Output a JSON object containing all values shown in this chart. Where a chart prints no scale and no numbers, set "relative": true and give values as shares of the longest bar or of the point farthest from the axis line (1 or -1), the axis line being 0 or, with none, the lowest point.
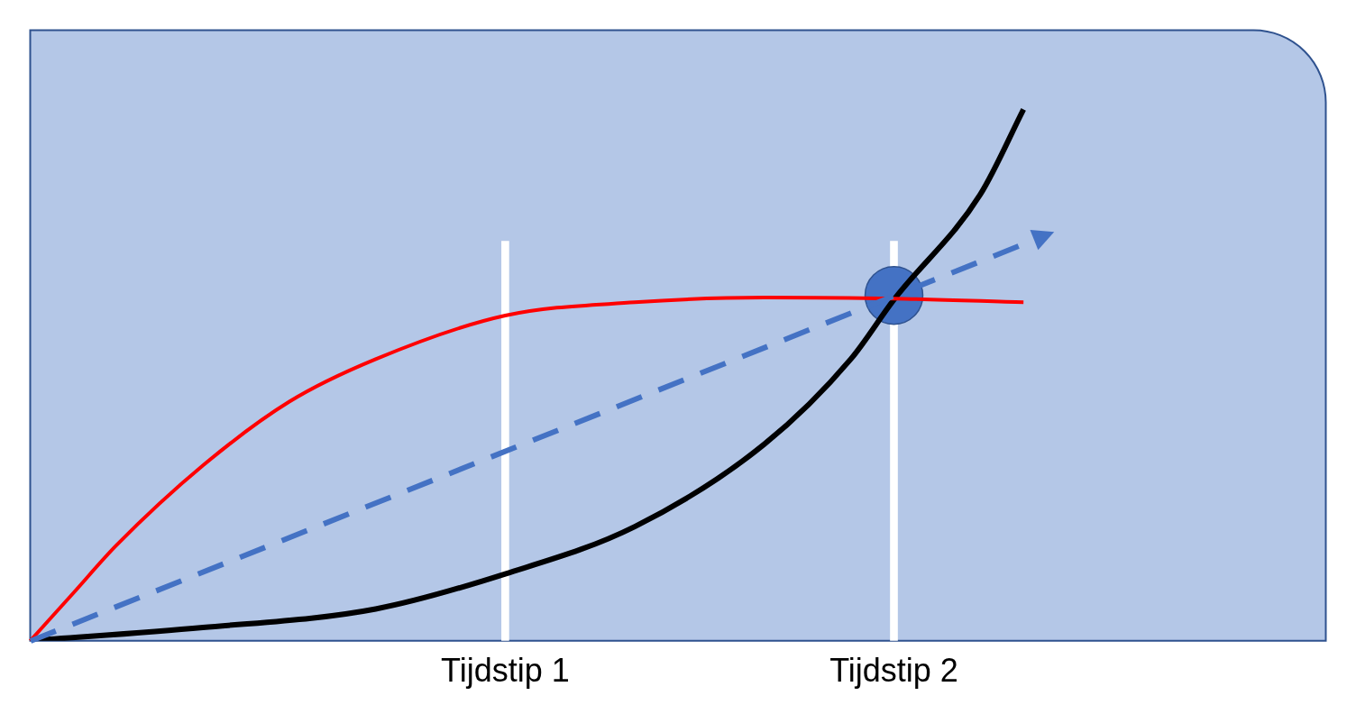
{
  "chart_data": {
    "type": "line",
    "relative": true,
    "legend": false,
    "marker": "none",
    "categories": [
      null,
      null,
      null,
      null,
      null,
      null,
      null,
      null,
      null,
      null,
      null,
      "Tijdstip 1",
      null,
      null,
      null,
      null,
      null,
      null,
      null,
      null,
      "Tijdstip 2",
      null,
      null,
      null,
      null,
      null,
      null,
      null,
      null,
      null,
      null
    ],
    "series": [
      {
        "type": "bar",
        "color": "#ffffff",
        "values": [
          null,
          null,
          null,
          null,
          null,
          null,
          null,
          null,
          null,
          null,
          null,
          0.752,
          null,
          null,
          null,
          null,
          null,
          null,
          null,
          null,
          0.752,
          null,
          null,
          null,
          null,
          null,
          null,
          null,
          null,
          null,
          null
        ]
      },
      {
        "color": "#ff0000",
        "values": [
          0,
          0.09,
          0.18,
          null,
          0.33,
          null,
          0.45,
          null,
          0.53,
          null,
          null,
          0.612,
          null,
          null,
          0.637,
          null,
          null,
          0.646,
          null,
          null,
          0.644,
          null,
          null,
          0.637,
          null,
          null,
          null,
          null,
          null,
          null,
          null
        ]
      },
      {
        "color": "#000000",
        "values": [
          0,
          null,
          null,
          null,
          0.025,
          null,
          null,
          null,
          0.06,
          null,
          null,
          0.126,
          null,
          null,
          0.215,
          null,
          null,
          0.37,
          null,
          0.53,
          0.642,
          null,
          0.84,
          1,
          null,
          null,
          null,
          null,
          null,
          null,
          null
        ]
      },
      {
        "type": "scatter",
        "color": "#4472c4",
        "marker": "circle",
        "values": [
          null,
          null,
          null,
          null,
          null,
          null,
          null,
          null,
          null,
          null,
          null,
          null,
          null,
          null,
          null,
          null,
          null,
          null,
          null,
          null,
          0.65,
          null,
          null,
          null,
          null,
          null,
          null,
          null,
          null,
          null,
          null
        ]
      }
    ]
  }
}
